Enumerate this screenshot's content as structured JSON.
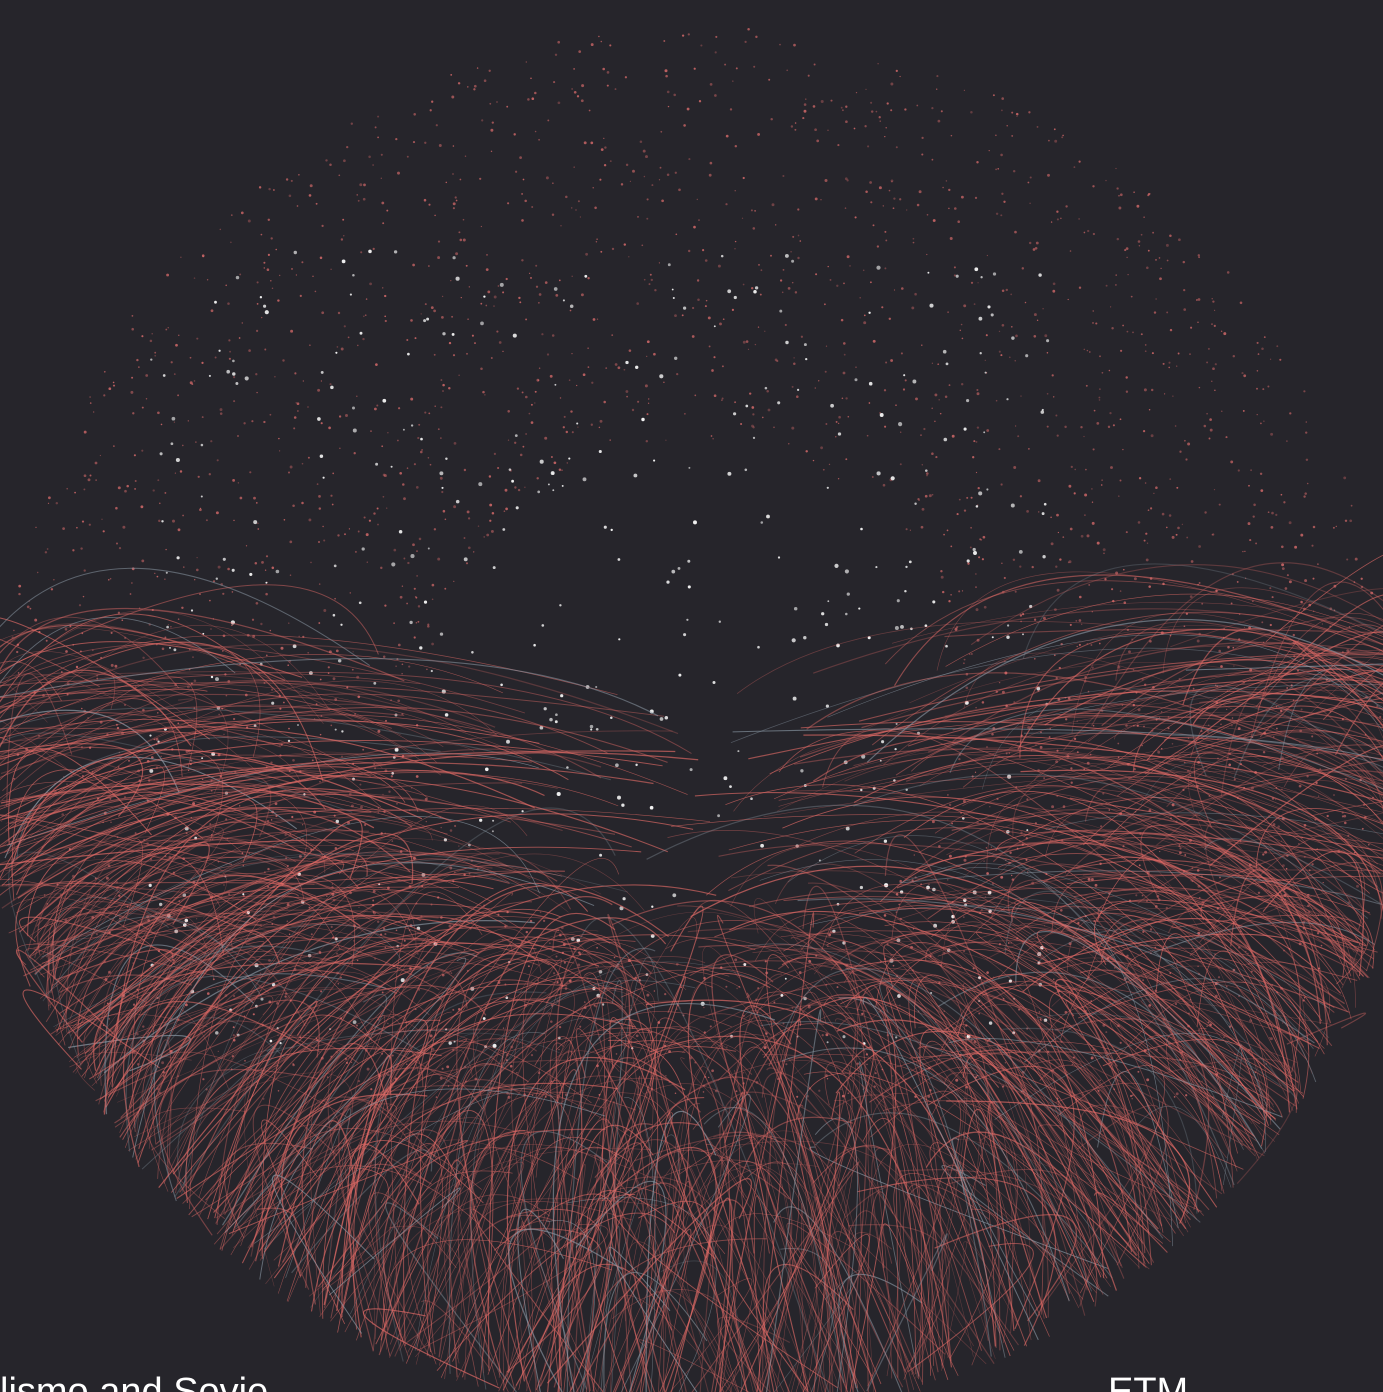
{
  "caption": {
    "left": "lismo and Sovie",
    "right": "ETM"
  }
}
